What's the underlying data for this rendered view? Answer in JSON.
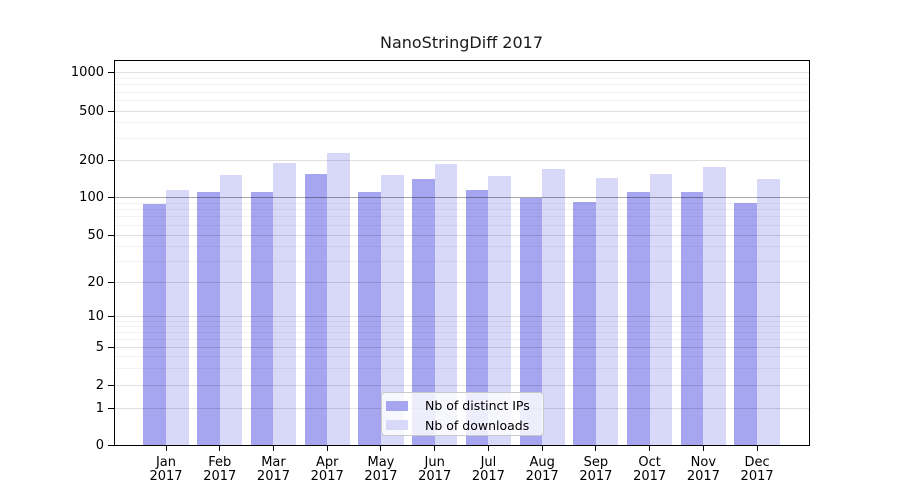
{
  "title": "NanoStringDiff 2017",
  "chart_data": {
    "type": "bar",
    "title": "NanoStringDiff 2017",
    "categories": [
      "Jan",
      "Feb",
      "Mar",
      "Apr",
      "May",
      "Jun",
      "Jul",
      "Aug",
      "Sep",
      "Oct",
      "Nov",
      "Dec"
    ],
    "x_year_label": "2017",
    "series": [
      {
        "name": "Nb of distinct IPs",
        "color": "#a6a6f0",
        "values": [
          89,
          111,
          111,
          154,
          112,
          140,
          115,
          100,
          93,
          111,
          112,
          91
        ]
      },
      {
        "name": "Nb of downloads",
        "color": "#d8d8f8",
        "values": [
          116,
          152,
          189,
          228,
          152,
          186,
          148,
          170,
          143,
          155,
          175,
          141
        ]
      }
    ],
    "yticks": [
      0,
      1,
      2,
      5,
      10,
      20,
      50,
      100,
      200,
      500,
      1000
    ],
    "yminorticks": [
      3,
      4,
      6,
      7,
      8,
      9,
      30,
      40,
      60,
      70,
      80,
      90,
      300,
      400,
      600,
      700,
      800,
      900
    ],
    "ylim": [
      0,
      1250
    ],
    "yscale": "log (1-2-5 labelled ticks) with 0 baseline",
    "grid": "horizontal major and minor gridlines, line at 100 emphasized",
    "legend_position": "inside axes, lower center",
    "xlabel": "",
    "ylabel": ""
  },
  "colors": {
    "bar_distinct_ips": "#a6a6f0",
    "bar_downloads": "#d8d8f8",
    "grid_major": "rgba(0,0,0,0.12)",
    "grid_minor": "rgba(0,0,0,0.05)",
    "grid_emphasis_100": "rgba(0,0,0,0.35)",
    "axis": "#000000",
    "background": "#ffffff",
    "legend_border": "#c9c9c9"
  }
}
